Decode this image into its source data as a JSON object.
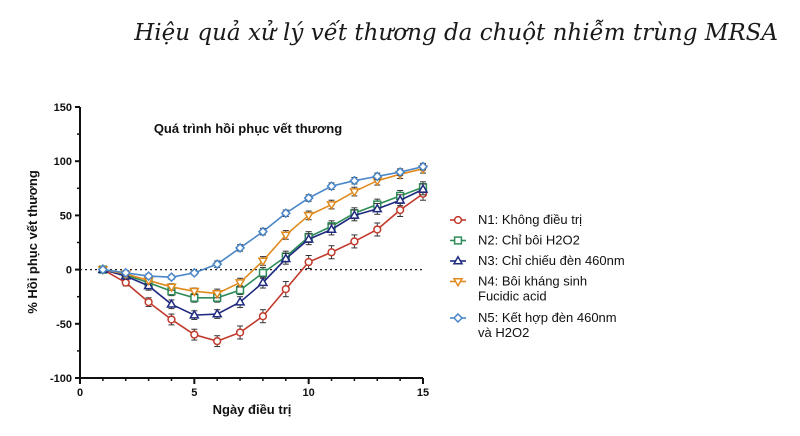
{
  "page": {
    "title": "Hiệu quả xử lý vết thương da chuột nhiễm trùng MRSA"
  },
  "chart_data": {
    "type": "line",
    "title": "Quá trình hồi phục vết thương",
    "xlabel": "Ngày điều trị",
    "ylabel": "% Hồi phục vết thương",
    "xlim": [
      0,
      15
    ],
    "ylim": [
      -100,
      150
    ],
    "xticks": [
      "0",
      "5",
      "10",
      "15"
    ],
    "yticks": [
      "150",
      "100",
      "50",
      "0",
      "-50",
      "-100"
    ],
    "reference_line_y": 0,
    "legend_position": "right",
    "x": [
      1,
      2,
      3,
      4,
      5,
      6,
      7,
      8,
      9,
      10,
      11,
      12,
      13,
      14,
      15
    ],
    "series": [
      {
        "name": "N1: Không điều trị",
        "color": "#c0392b",
        "marker": "circle",
        "values": [
          0,
          -12,
          -30,
          -46,
          -60,
          -66,
          -58,
          -43,
          -18,
          7,
          16,
          26,
          37,
          55,
          70
        ],
        "errors": [
          2,
          3,
          4,
          5,
          5,
          5,
          6,
          6,
          7,
          6,
          6,
          6,
          6,
          6,
          6
        ]
      },
      {
        "name": "N2: Chỉ bôi H2O2",
        "color": "#2e8b57",
        "marker": "square",
        "values": [
          0,
          -5,
          -12,
          -20,
          -26,
          -26,
          -19,
          -3,
          12,
          30,
          40,
          52,
          60,
          68,
          76
        ],
        "errors": [
          2,
          3,
          3,
          4,
          4,
          4,
          4,
          5,
          5,
          5,
          5,
          5,
          5,
          5,
          5
        ]
      },
      {
        "name": "N3: Chỉ chiếu đèn 460nm",
        "color": "#1f2a80",
        "marker": "triangle-up",
        "values": [
          0,
          -6,
          -15,
          -32,
          -42,
          -41,
          -30,
          -12,
          10,
          28,
          37,
          50,
          56,
          64,
          74
        ],
        "errors": [
          2,
          3,
          4,
          4,
          4,
          4,
          5,
          5,
          5,
          5,
          5,
          5,
          5,
          5,
          5
        ]
      },
      {
        "name": "N4: Bôi kháng sinh Fucidic acid",
        "name_lines": [
          "N4: Bôi kháng sinh",
          "Fucidic acid"
        ],
        "color": "#e08a1e",
        "marker": "triangle-down",
        "values": [
          0,
          -4,
          -10,
          -16,
          -20,
          -22,
          -12,
          8,
          32,
          50,
          60,
          72,
          82,
          88,
          93
        ],
        "errors": [
          2,
          3,
          3,
          3,
          3,
          4,
          4,
          4,
          4,
          4,
          4,
          4,
          4,
          4,
          4
        ]
      },
      {
        "name": "N5: Kết hợp đèn 460nm và H2O2",
        "name_lines": [
          "N5: Kết hợp đèn 460nm",
          "và H2O2"
        ],
        "color": "#4a86c8",
        "marker": "diamond",
        "values": [
          0,
          -3,
          -6,
          -7,
          -3,
          5,
          20,
          35,
          52,
          66,
          77,
          82,
          86,
          90,
          95
        ],
        "errors": [
          2,
          2,
          2,
          2,
          2,
          3,
          3,
          3,
          3,
          3,
          3,
          3,
          3,
          3,
          3
        ]
      }
    ]
  }
}
